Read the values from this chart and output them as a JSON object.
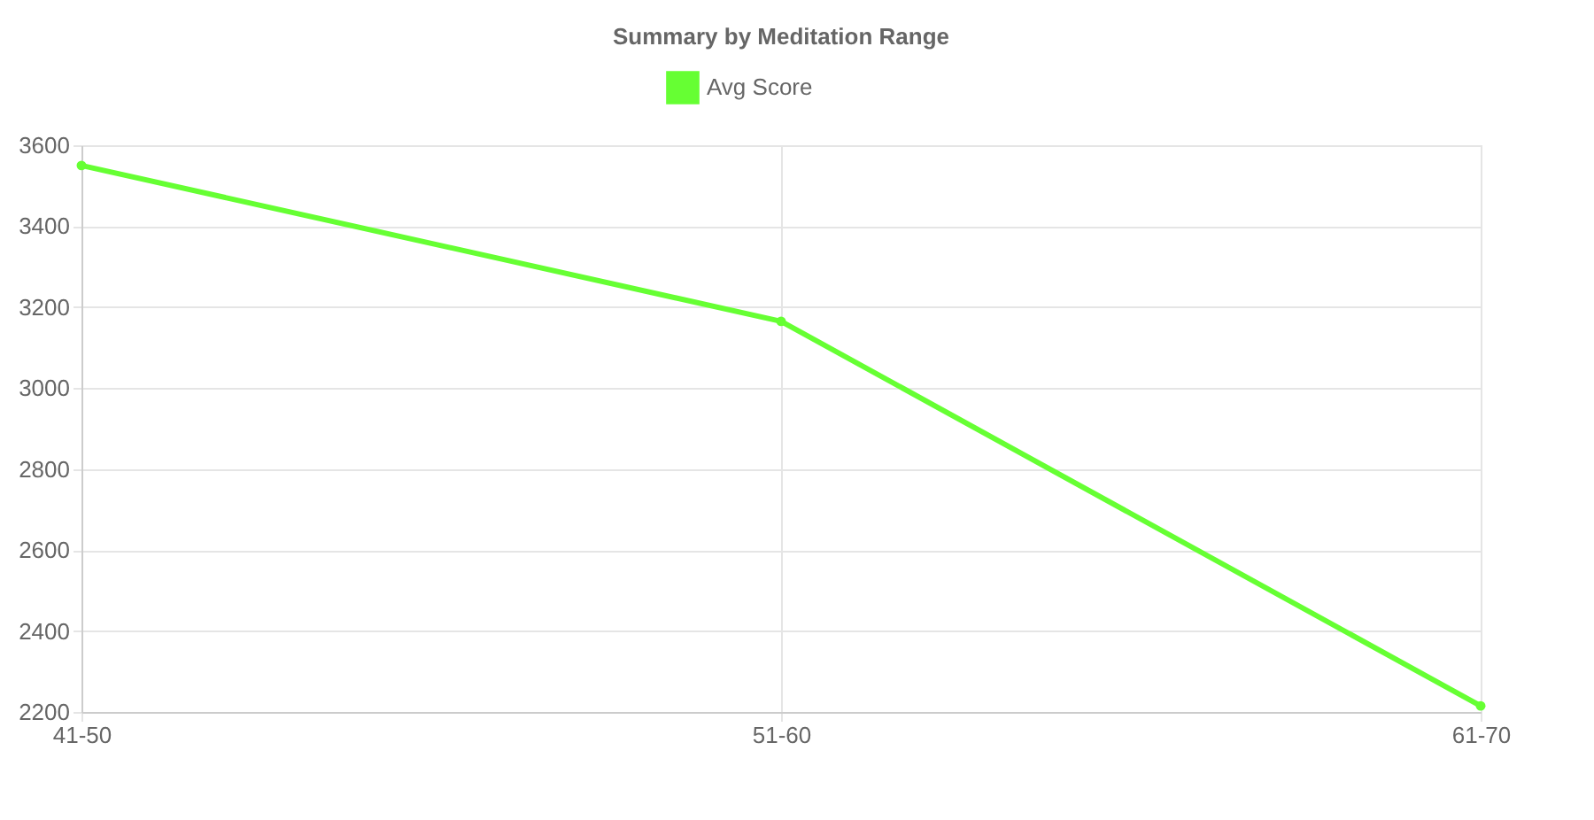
{
  "chart_data": {
    "type": "line",
    "title": "Summary by Meditation Range",
    "categories": [
      "41-50",
      "51-60",
      "61-70"
    ],
    "series": [
      {
        "name": "Avg Score",
        "color": "#66ff33",
        "values": [
          3550,
          3165,
          2215
        ]
      }
    ],
    "ylim": [
      2200,
      3600
    ],
    "yticks": [
      2200,
      2400,
      2600,
      2800,
      3000,
      3200,
      3400,
      3600
    ],
    "grid": true,
    "legend": "top",
    "marker": "circle",
    "line_style": "solid"
  }
}
